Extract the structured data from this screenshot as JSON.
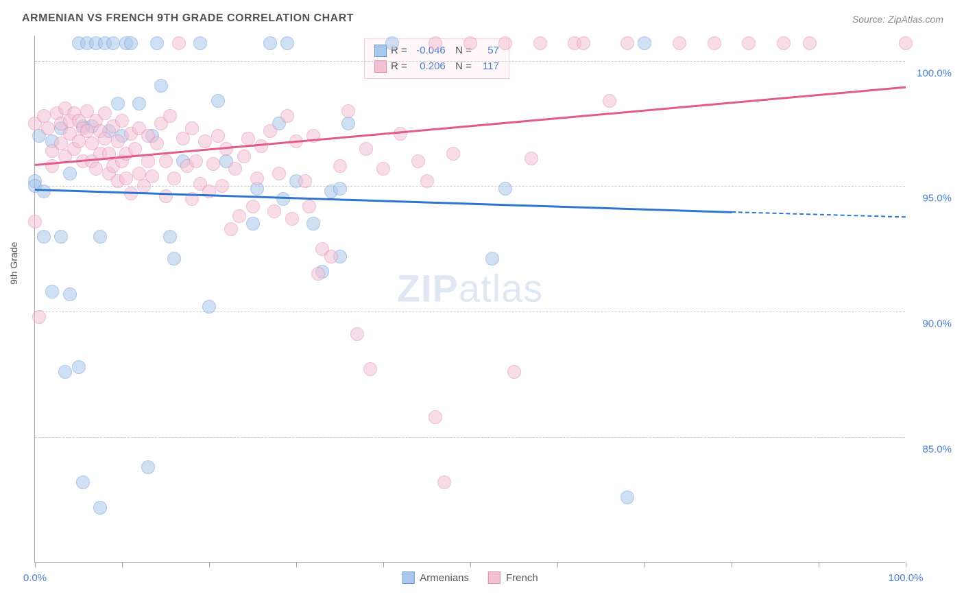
{
  "title": "ARMENIAN VS FRENCH 9TH GRADE CORRELATION CHART",
  "source": "Source: ZipAtlas.com",
  "y_axis_label": "9th Grade",
  "watermark": {
    "bold": "ZIP",
    "rest": "atlas"
  },
  "chart": {
    "type": "scatter",
    "xlim": [
      0,
      100
    ],
    "ylim": [
      80,
      101
    ],
    "x_ticks": [
      0,
      10,
      20,
      30,
      40,
      50,
      60,
      70,
      80,
      90,
      100
    ],
    "x_tick_labels": {
      "0": "0.0%",
      "100": "100.0%"
    },
    "y_ticks": [
      85,
      90,
      95,
      100
    ],
    "y_tick_labels": {
      "85": "85.0%",
      "90": "90.0%",
      "95": "95.0%",
      "100": "100.0%"
    },
    "grid_color": "#cccccc",
    "background_color": "#ffffff",
    "axis_color": "#aaaaaa",
    "tick_label_color": "#4a7fd6",
    "marker_radius": 10,
    "marker_opacity": 0.55,
    "series": [
      {
        "name": "Armenians",
        "color_fill": "#a9c7ec",
        "color_stroke": "#6a9bd8",
        "r_value": "-0.046",
        "n_value": "57",
        "trend": {
          "x1": 0,
          "y1": 94.9,
          "x2_solid": 80,
          "y2_solid": 94.0,
          "x2_dash": 100,
          "y2_dash": 93.8,
          "color": "#2f74d0"
        },
        "points": [
          [
            0,
            95.2
          ],
          [
            0,
            95.0
          ],
          [
            0.5,
            97.0
          ],
          [
            1,
            94.8
          ],
          [
            1,
            93.0
          ],
          [
            2,
            96.8
          ],
          [
            2,
            90.8
          ],
          [
            3,
            97.3
          ],
          [
            3,
            93.0
          ],
          [
            3.5,
            87.6
          ],
          [
            4,
            95.5
          ],
          [
            4,
            90.7
          ],
          [
            5,
            100.7
          ],
          [
            5,
            87.8
          ],
          [
            5.5,
            97.4
          ],
          [
            5.5,
            83.2
          ],
          [
            6,
            100.7
          ],
          [
            6.5,
            97.4
          ],
          [
            7,
            100.7
          ],
          [
            7.5,
            93.0
          ],
          [
            7.5,
            82.2
          ],
          [
            8,
            100.7
          ],
          [
            8.5,
            97.2
          ],
          [
            9,
            100.7
          ],
          [
            9.5,
            98.3
          ],
          [
            10,
            97.0
          ],
          [
            10.5,
            100.7
          ],
          [
            11,
            100.7
          ],
          [
            12,
            98.3
          ],
          [
            13,
            83.8
          ],
          [
            13.5,
            97.0
          ],
          [
            14,
            100.7
          ],
          [
            14.5,
            99.0
          ],
          [
            15.5,
            93.0
          ],
          [
            16,
            92.1
          ],
          [
            17,
            96.0
          ],
          [
            19,
            100.7
          ],
          [
            20,
            90.2
          ],
          [
            21,
            98.4
          ],
          [
            22,
            96.0
          ],
          [
            25,
            93.5
          ],
          [
            25.5,
            94.9
          ],
          [
            27,
            100.7
          ],
          [
            28,
            97.5
          ],
          [
            28.5,
            94.5
          ],
          [
            29,
            100.7
          ],
          [
            30,
            95.2
          ],
          [
            32,
            93.5
          ],
          [
            33,
            91.6
          ],
          [
            34,
            94.8
          ],
          [
            35,
            94.9
          ],
          [
            35,
            92.2
          ],
          [
            36,
            97.5
          ],
          [
            41,
            100.7
          ],
          [
            52.5,
            92.1
          ],
          [
            54,
            94.9
          ],
          [
            68,
            82.6
          ],
          [
            70,
            100.7
          ]
        ]
      },
      {
        "name": "French",
        "color_fill": "#f4c0d4",
        "color_stroke": "#e18bb0",
        "r_value": "0.206",
        "n_value": "117",
        "trend": {
          "x1": 0,
          "y1": 95.9,
          "x2_solid": 100,
          "y2_solid": 99.0,
          "color": "#e05a8c"
        },
        "points": [
          [
            0,
            97.5
          ],
          [
            0,
            93.6
          ],
          [
            0.5,
            89.8
          ],
          [
            1,
            97.8
          ],
          [
            1.5,
            97.3
          ],
          [
            2,
            96.4
          ],
          [
            2,
            95.8
          ],
          [
            2.5,
            97.9
          ],
          [
            3,
            97.5
          ],
          [
            3,
            96.7
          ],
          [
            3.5,
            98.1
          ],
          [
            3.5,
            96.2
          ],
          [
            4,
            97.6
          ],
          [
            4,
            97.1
          ],
          [
            4.5,
            97.9
          ],
          [
            4.5,
            96.5
          ],
          [
            5,
            97.6
          ],
          [
            5,
            96.8
          ],
          [
            5.5,
            97.3
          ],
          [
            5.5,
            96.0
          ],
          [
            6,
            98.0
          ],
          [
            6,
            97.2
          ],
          [
            6.5,
            96.7
          ],
          [
            6.5,
            96.0
          ],
          [
            7,
            97.6
          ],
          [
            7,
            95.7
          ],
          [
            7.5,
            97.2
          ],
          [
            7.5,
            96.3
          ],
          [
            8,
            97.9
          ],
          [
            8,
            96.9
          ],
          [
            8.5,
            96.3
          ],
          [
            8.5,
            95.5
          ],
          [
            9,
            97.4
          ],
          [
            9,
            95.8
          ],
          [
            9.5,
            96.8
          ],
          [
            9.5,
            95.2
          ],
          [
            10,
            97.6
          ],
          [
            10,
            96.0
          ],
          [
            10.5,
            96.3
          ],
          [
            10.5,
            95.3
          ],
          [
            11,
            97.1
          ],
          [
            11,
            94.7
          ],
          [
            11.5,
            96.5
          ],
          [
            12,
            97.3
          ],
          [
            12,
            95.5
          ],
          [
            12.5,
            95.0
          ],
          [
            13,
            97.0
          ],
          [
            13,
            96.0
          ],
          [
            13.5,
            95.4
          ],
          [
            14,
            96.7
          ],
          [
            14.5,
            97.5
          ],
          [
            15,
            96.0
          ],
          [
            15,
            94.6
          ],
          [
            15.5,
            97.8
          ],
          [
            16,
            95.3
          ],
          [
            16.5,
            100.7
          ],
          [
            17,
            96.9
          ],
          [
            17.5,
            95.8
          ],
          [
            18,
            97.3
          ],
          [
            18,
            94.5
          ],
          [
            18.5,
            96.0
          ],
          [
            19,
            95.1
          ],
          [
            19.5,
            96.8
          ],
          [
            20,
            94.8
          ],
          [
            20.5,
            95.9
          ],
          [
            21,
            97.0
          ],
          [
            21.5,
            95.0
          ],
          [
            22,
            96.5
          ],
          [
            22.5,
            93.3
          ],
          [
            23,
            95.7
          ],
          [
            23.5,
            93.8
          ],
          [
            24,
            96.2
          ],
          [
            24.5,
            96.9
          ],
          [
            25,
            94.2
          ],
          [
            25.5,
            95.3
          ],
          [
            26,
            96.6
          ],
          [
            27,
            97.2
          ],
          [
            27.5,
            94.0
          ],
          [
            28,
            95.5
          ],
          [
            29,
            97.8
          ],
          [
            29.5,
            93.7
          ],
          [
            30,
            96.8
          ],
          [
            31,
            95.2
          ],
          [
            31.5,
            94.2
          ],
          [
            32,
            97.0
          ],
          [
            32.5,
            91.5
          ],
          [
            33,
            92.5
          ],
          [
            34,
            92.2
          ],
          [
            35,
            95.8
          ],
          [
            36,
            98.0
          ],
          [
            37,
            89.1
          ],
          [
            38,
            96.5
          ],
          [
            38.5,
            87.7
          ],
          [
            40,
            95.7
          ],
          [
            42,
            97.1
          ],
          [
            44,
            96.0
          ],
          [
            45,
            95.2
          ],
          [
            46,
            100.7
          ],
          [
            46,
            85.8
          ],
          [
            47,
            83.2
          ],
          [
            48,
            96.3
          ],
          [
            50,
            100.7
          ],
          [
            54,
            100.7
          ],
          [
            55,
            87.6
          ],
          [
            57,
            96.1
          ],
          [
            58,
            100.7
          ],
          [
            62,
            100.7
          ],
          [
            63,
            100.7
          ],
          [
            66,
            98.4
          ],
          [
            68,
            100.7
          ],
          [
            74,
            100.7
          ],
          [
            78,
            100.7
          ],
          [
            82,
            100.7
          ],
          [
            86,
            100.7
          ],
          [
            89,
            100.7
          ],
          [
            100,
            100.7
          ]
        ]
      }
    ]
  },
  "legend_top": {
    "rows": [
      {
        "swatch_fill": "#a9c7ec",
        "swatch_stroke": "#6a9bd8",
        "r": "-0.046",
        "n": "57"
      },
      {
        "swatch_fill": "#f4c0d4",
        "swatch_stroke": "#e18bb0",
        "r": "0.206",
        "n": "117"
      }
    ]
  },
  "legend_bottom": [
    {
      "swatch_fill": "#a9c7ec",
      "swatch_stroke": "#6a9bd8",
      "label": "Armenians"
    },
    {
      "swatch_fill": "#f4c0d4",
      "swatch_stroke": "#e18bb0",
      "label": "French"
    }
  ]
}
